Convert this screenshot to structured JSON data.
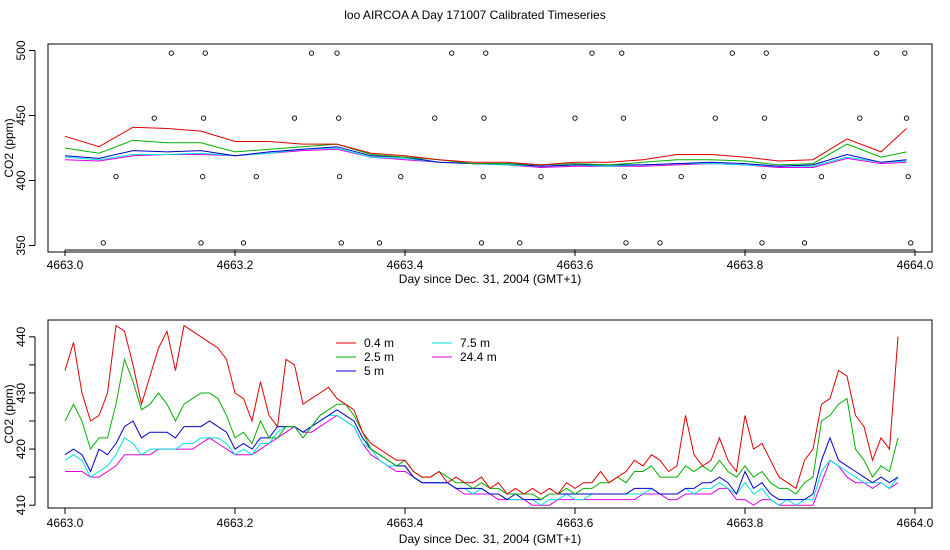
{
  "title": "loo AIRCOA A  Day 171007  Calibrated Timeseries",
  "colors": {
    "0.4 m": "#e00000",
    "2.5 m": "#00b000",
    "5 m": "#0000c8",
    "7.5 m": "#00e0e0",
    "24.4 m": "#e000e0",
    "axis": "#000000"
  },
  "chart_data": [
    {
      "type": "line",
      "xlabel": "Day since Dec. 31, 2004 (GMT+1)",
      "ylabel": "CO2 (ppm)",
      "xlim": [
        4662.98,
        4664.02
      ],
      "ylim": [
        345,
        505
      ],
      "xticks": [
        4663.0,
        4663.2,
        4663.4,
        4663.6,
        4663.8,
        4664.0
      ],
      "xtick_labels": [
        "4663.0",
        "4663.2",
        "4663.4",
        "4663.6",
        "4663.8",
        "4664.0"
      ],
      "yticks": [
        350,
        400,
        450,
        500
      ],
      "ytick_labels": [
        "350",
        "400",
        "450",
        "500"
      ],
      "x": [
        4663.0,
        4663.04,
        4663.08,
        4663.12,
        4663.16,
        4663.2,
        4663.24,
        4663.28,
        4663.32,
        4663.36,
        4663.4,
        4663.44,
        4663.48,
        4663.52,
        4663.56,
        4663.6,
        4663.64,
        4663.68,
        4663.72,
        4663.76,
        4663.8,
        4663.84,
        4663.88,
        4663.92,
        4663.96,
        4663.99
      ],
      "series": [
        {
          "name": "0.4 m",
          "values": [
            434,
            426,
            441,
            440,
            438,
            430,
            430,
            428,
            428,
            421,
            419,
            416,
            414,
            414,
            412,
            414,
            414,
            416,
            420,
            420,
            418,
            415,
            416,
            432,
            422,
            440
          ]
        },
        {
          "name": "2.5 m",
          "values": [
            425,
            421,
            431,
            429,
            429,
            422,
            424,
            426,
            428,
            420,
            418,
            416,
            413,
            413,
            412,
            413,
            412,
            414,
            416,
            416,
            415,
            412,
            413,
            428,
            418,
            422
          ]
        },
        {
          "name": "5 m",
          "values": [
            419,
            417,
            423,
            422,
            423,
            419,
            422,
            424,
            426,
            419,
            418,
            414,
            413,
            413,
            411,
            412,
            412,
            412,
            413,
            414,
            413,
            411,
            412,
            420,
            414,
            416
          ]
        },
        {
          "name": "7.5 m",
          "values": [
            418,
            416,
            420,
            420,
            421,
            419,
            421,
            424,
            425,
            418,
            417,
            414,
            413,
            412,
            411,
            412,
            411,
            412,
            413,
            413,
            412,
            411,
            411,
            418,
            414,
            415
          ]
        },
        {
          "name": "24.4 m",
          "values": [
            416,
            415,
            419,
            420,
            420,
            419,
            421,
            423,
            424,
            418,
            416,
            414,
            413,
            412,
            410,
            411,
            411,
            411,
            412,
            413,
            412,
            410,
            410,
            417,
            413,
            414
          ]
        }
      ],
      "markers": {
        "style": "open-circle",
        "points": [
          [
            4663.045,
            352
          ],
          [
            4663.06,
            403
          ],
          [
            4663.105,
            448
          ],
          [
            4663.125,
            498
          ],
          [
            4663.16,
            352
          ],
          [
            4663.162,
            403
          ],
          [
            4663.163,
            448
          ],
          [
            4663.165,
            498
          ],
          [
            4663.21,
            352
          ],
          [
            4663.225,
            403
          ],
          [
            4663.27,
            448
          ],
          [
            4663.29,
            498
          ],
          [
            4663.32,
            498
          ],
          [
            4663.322,
            448
          ],
          [
            4663.323,
            403
          ],
          [
            4663.325,
            352
          ],
          [
            4663.37,
            352
          ],
          [
            4663.395,
            403
          ],
          [
            4663.435,
            448
          ],
          [
            4663.455,
            498
          ],
          [
            4663.49,
            352
          ],
          [
            4663.492,
            403
          ],
          [
            4663.493,
            448
          ],
          [
            4663.495,
            498
          ],
          [
            4663.535,
            352
          ],
          [
            4663.56,
            403
          ],
          [
            4663.6,
            448
          ],
          [
            4663.62,
            498
          ],
          [
            4663.655,
            498
          ],
          [
            4663.657,
            448
          ],
          [
            4663.658,
            403
          ],
          [
            4663.66,
            352
          ],
          [
            4663.7,
            352
          ],
          [
            4663.725,
            403
          ],
          [
            4663.765,
            448
          ],
          [
            4663.785,
            498
          ],
          [
            4663.82,
            352
          ],
          [
            4663.822,
            403
          ],
          [
            4663.823,
            448
          ],
          [
            4663.825,
            498
          ],
          [
            4663.87,
            352
          ],
          [
            4663.89,
            403
          ],
          [
            4663.935,
            448
          ],
          [
            4663.955,
            498
          ],
          [
            4663.988,
            498
          ],
          [
            4663.99,
            448
          ],
          [
            4663.992,
            403
          ],
          [
            4663.995,
            352
          ]
        ]
      }
    },
    {
      "type": "line",
      "xlabel": "Day since Dec. 31, 2004 (GMT+1)",
      "ylabel": "CO2 (ppm)",
      "xlim": [
        4662.98,
        4664.02
      ],
      "ylim": [
        409.5,
        443
      ],
      "xticks": [
        4663.0,
        4663.2,
        4663.4,
        4663.6,
        4663.8,
        4664.0
      ],
      "xtick_labels": [
        "4663.0",
        "4663.2",
        "4663.4",
        "4663.6",
        "4663.8",
        "4664.0"
      ],
      "yticks": [
        410,
        415,
        420,
        425,
        430,
        435,
        440
      ],
      "ytick_labels": [
        "410",
        "",
        "420",
        "",
        "430",
        "",
        "440"
      ],
      "legend": {
        "position": "top-center",
        "columns": 2
      },
      "x": [
        4663.0,
        4663.01,
        4663.02,
        4663.03,
        4663.04,
        4663.05,
        4663.06,
        4663.07,
        4663.08,
        4663.09,
        4663.1,
        4663.11,
        4663.12,
        4663.13,
        4663.14,
        4663.15,
        4663.16,
        4663.17,
        4663.18,
        4663.19,
        4663.2,
        4663.21,
        4663.22,
        4663.23,
        4663.24,
        4663.25,
        4663.26,
        4663.27,
        4663.28,
        4663.29,
        4663.3,
        4663.31,
        4663.32,
        4663.33,
        4663.34,
        4663.35,
        4663.36,
        4663.37,
        4663.38,
        4663.39,
        4663.4,
        4663.41,
        4663.42,
        4663.43,
        4663.44,
        4663.45,
        4663.46,
        4663.47,
        4663.48,
        4663.49,
        4663.5,
        4663.51,
        4663.52,
        4663.53,
        4663.54,
        4663.55,
        4663.56,
        4663.57,
        4663.58,
        4663.59,
        4663.6,
        4663.61,
        4663.62,
        4663.63,
        4663.64,
        4663.65,
        4663.66,
        4663.67,
        4663.68,
        4663.69,
        4663.7,
        4663.71,
        4663.72,
        4663.73,
        4663.74,
        4663.75,
        4663.76,
        4663.77,
        4663.78,
        4663.79,
        4663.8,
        4663.81,
        4663.82,
        4663.83,
        4663.84,
        4663.85,
        4663.86,
        4663.87,
        4663.88,
        4663.89,
        4663.9,
        4663.91,
        4663.92,
        4663.93,
        4663.94,
        4663.95,
        4663.96,
        4663.97,
        4663.98
      ],
      "series": [
        {
          "name": "0.4 m",
          "values": [
            434,
            439,
            430,
            425,
            426,
            430,
            442,
            441,
            435,
            428,
            433,
            438,
            441,
            434,
            442,
            441,
            440,
            439,
            438,
            436,
            430,
            429,
            425,
            432,
            426,
            424,
            436,
            435,
            428,
            429,
            430,
            431,
            429,
            428,
            427,
            423,
            421,
            420,
            419,
            418,
            418,
            416,
            415,
            415,
            416,
            414,
            415,
            414,
            414,
            415,
            413,
            414,
            412,
            413,
            412,
            413,
            412,
            413,
            412,
            414,
            413,
            414,
            414,
            416,
            414,
            415,
            416,
            418,
            417,
            419,
            418,
            416,
            417,
            426,
            419,
            417,
            418,
            422,
            418,
            416,
            426,
            420,
            421,
            418,
            415,
            414,
            413,
            418,
            420,
            428,
            429,
            434,
            433,
            426,
            424,
            418,
            422,
            420,
            440
          ]
        },
        {
          "name": "2.5 m",
          "values": [
            425,
            428,
            425,
            420,
            422,
            422,
            428,
            436,
            432,
            427,
            428,
            430,
            428,
            425,
            428,
            429,
            430,
            430,
            429,
            426,
            422,
            423,
            421,
            425,
            422,
            422,
            424,
            424,
            422,
            424,
            426,
            427,
            428,
            428,
            426,
            423,
            420,
            419,
            418,
            417,
            418,
            416,
            415,
            415,
            416,
            415,
            414,
            414,
            413,
            414,
            413,
            413,
            412,
            412,
            412,
            412,
            411,
            412,
            412,
            413,
            412,
            413,
            413,
            414,
            414,
            415,
            414,
            416,
            416,
            417,
            415,
            415,
            415,
            417,
            416,
            417,
            416,
            418,
            416,
            415,
            417,
            415,
            416,
            414,
            413,
            413,
            412,
            414,
            415,
            425,
            426,
            428,
            429,
            420,
            418,
            415,
            417,
            416,
            422
          ]
        },
        {
          "name": "5 m",
          "values": [
            419,
            420,
            419,
            416,
            420,
            419,
            421,
            424,
            425,
            422,
            423,
            423,
            423,
            422,
            424,
            424,
            424,
            425,
            424,
            423,
            420,
            421,
            420,
            422,
            422,
            424,
            424,
            424,
            423,
            424,
            425,
            426,
            427,
            426,
            425,
            422,
            420,
            419,
            418,
            417,
            417,
            415,
            414,
            414,
            414,
            414,
            413,
            413,
            413,
            413,
            412,
            412,
            411,
            412,
            411,
            411,
            411,
            412,
            412,
            412,
            412,
            412,
            412,
            412,
            412,
            412,
            412,
            413,
            413,
            413,
            412,
            412,
            412,
            413,
            413,
            414,
            414,
            415,
            414,
            412,
            416,
            413,
            414,
            412,
            411,
            411,
            411,
            411,
            412,
            418,
            422,
            418,
            417,
            416,
            415,
            414,
            415,
            414,
            415
          ]
        },
        {
          "name": "7.5 m",
          "values": [
            418,
            419,
            418,
            415,
            416,
            417,
            419,
            422,
            421,
            419,
            420,
            420,
            420,
            420,
            421,
            421,
            422,
            422,
            422,
            421,
            419,
            420,
            419,
            421,
            421,
            423,
            424,
            424,
            423,
            424,
            425,
            426,
            426,
            425,
            424,
            421,
            420,
            418,
            417,
            417,
            417,
            415,
            414,
            414,
            414,
            414,
            413,
            413,
            412,
            413,
            412,
            412,
            411,
            411,
            411,
            411,
            410,
            411,
            411,
            412,
            411,
            411,
            412,
            412,
            412,
            412,
            412,
            412,
            412,
            413,
            412,
            412,
            412,
            413,
            412,
            413,
            413,
            414,
            413,
            412,
            414,
            412,
            413,
            411,
            410,
            411,
            410,
            411,
            411,
            416,
            418,
            417,
            416,
            415,
            414,
            414,
            414,
            413,
            415
          ]
        },
        {
          "name": "24.4 m",
          "values": [
            416,
            416,
            416,
            415,
            415,
            416,
            417,
            419,
            419,
            419,
            419,
            420,
            420,
            420,
            420,
            420,
            421,
            422,
            421,
            420,
            419,
            419,
            419,
            420,
            421,
            422,
            423,
            424,
            423,
            423,
            424,
            425,
            426,
            425,
            424,
            421,
            419,
            418,
            417,
            416,
            416,
            415,
            414,
            414,
            414,
            414,
            413,
            412,
            412,
            412,
            412,
            411,
            411,
            411,
            411,
            410,
            410,
            410,
            411,
            411,
            411,
            411,
            411,
            411,
            411,
            411,
            411,
            411,
            412,
            412,
            412,
            411,
            411,
            412,
            412,
            412,
            412,
            413,
            413,
            411,
            411,
            410,
            411,
            411,
            410,
            410,
            410,
            410,
            410,
            414,
            418,
            417,
            415,
            414,
            414,
            413,
            414,
            413,
            414
          ]
        }
      ]
    }
  ]
}
